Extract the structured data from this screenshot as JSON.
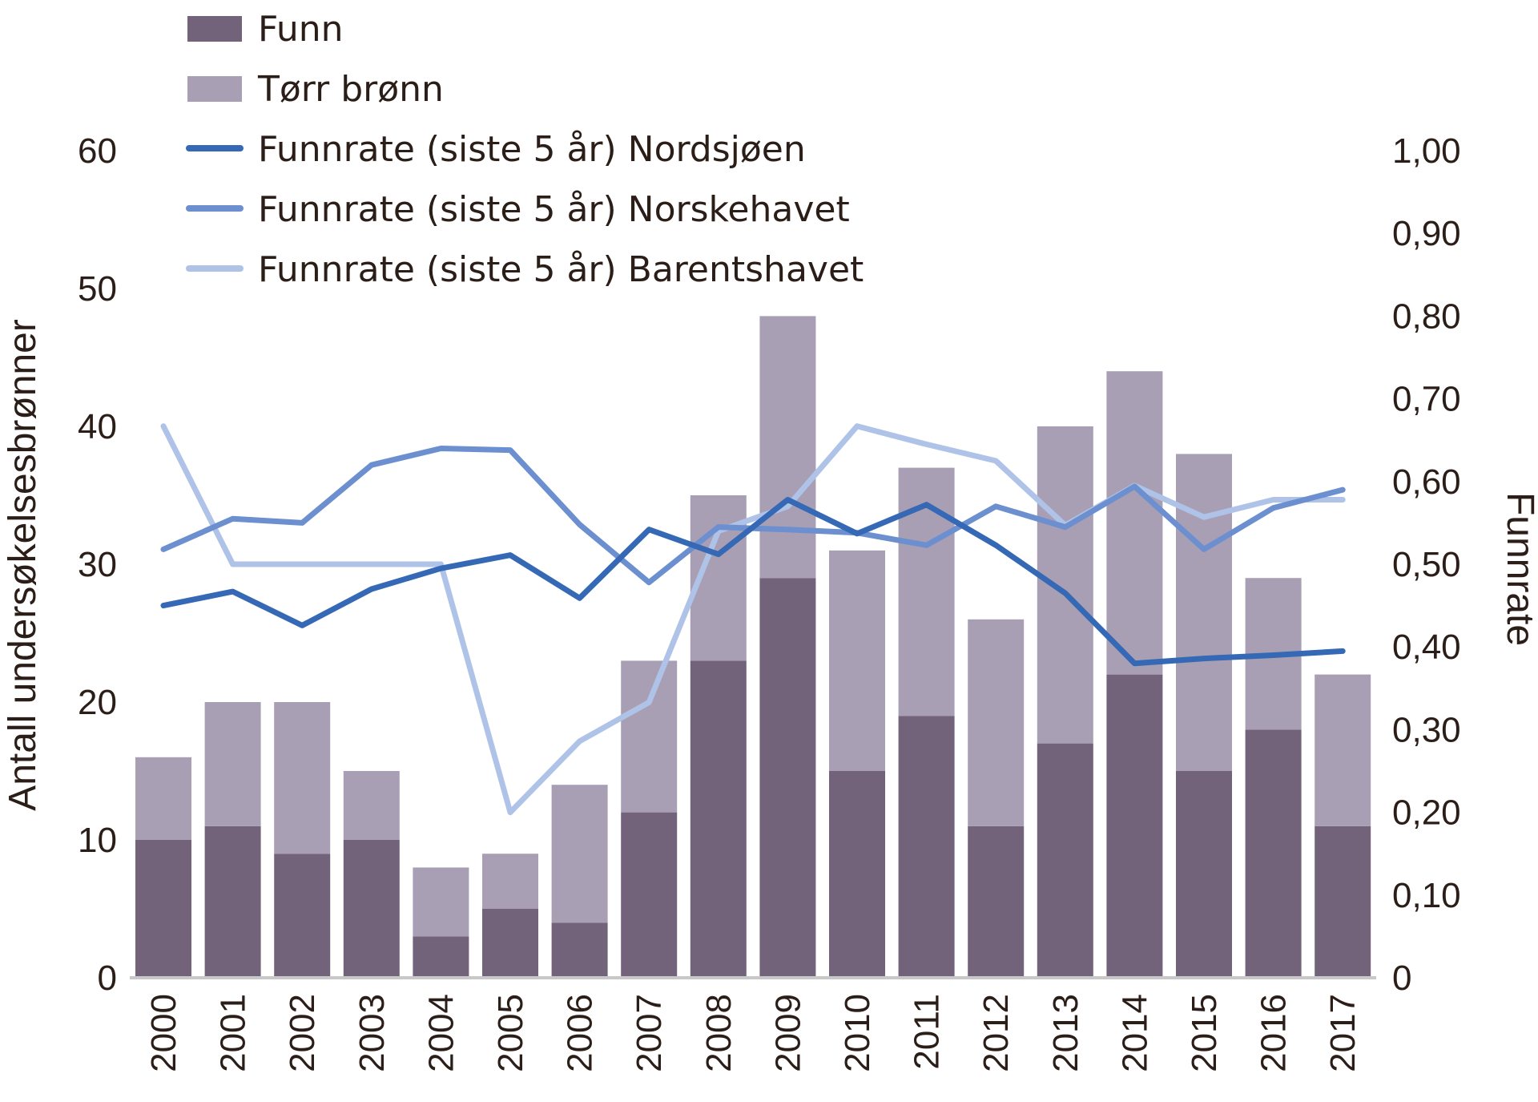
{
  "chart_data": {
    "type": "bar",
    "stacked": true,
    "categories": [
      "2000",
      "2001",
      "2002",
      "2003",
      "2004",
      "2005",
      "2006",
      "2007",
      "2008",
      "2009",
      "2010",
      "2011",
      "2012",
      "2013",
      "2014",
      "2015",
      "2016",
      "2017"
    ],
    "bar_series": [
      {
        "name": "Funn",
        "color": "#73637a",
        "values": [
          10,
          11,
          9,
          10,
          3,
          5,
          4,
          12,
          23,
          29,
          15,
          19,
          11,
          17,
          22,
          15,
          18,
          11
        ]
      },
      {
        "name": "Tørr brønn",
        "color": "#a89fb4",
        "values": [
          6,
          9,
          11,
          5,
          5,
          4,
          10,
          11,
          12,
          19,
          16,
          18,
          15,
          23,
          22,
          23,
          11,
          11
        ]
      }
    ],
    "line_series": [
      {
        "name": "Funnrate (siste 5 år) Nordsjøen",
        "color": "#3569b5",
        "axis": "right",
        "values": [
          0.45,
          0.467,
          0.426,
          0.47,
          0.495,
          0.511,
          0.459,
          0.542,
          0.512,
          0.578,
          0.537,
          0.572,
          0.523,
          0.465,
          0.38,
          0.386,
          0.39,
          0.395
        ]
      },
      {
        "name": "Funnrate (siste 5 år) Norskehavet",
        "color": "#6c8fd0",
        "axis": "right",
        "values": [
          0.518,
          0.555,
          0.55,
          0.62,
          0.64,
          0.638,
          0.548,
          0.478,
          0.545,
          0.542,
          0.538,
          0.523,
          0.57,
          0.545,
          0.594,
          0.518,
          0.568,
          0.59
        ]
      },
      {
        "name": "Funnrate (siste 5 år) Barentshavet",
        "color": "#afc2e7",
        "axis": "right",
        "values": [
          0.667,
          0.5,
          0.5,
          0.5,
          0.5,
          0.2,
          0.286,
          0.333,
          0.54,
          0.57,
          0.667,
          0.645,
          0.625,
          0.547,
          0.595,
          0.557,
          0.578,
          0.578
        ]
      }
    ],
    "y_left": {
      "label": "Antall undersøkelsesbrønner",
      "ylim": [
        0,
        60
      ],
      "ticks": [
        "0",
        "10",
        "20",
        "30",
        "40",
        "50",
        "60"
      ]
    },
    "y_right": {
      "label": "Funnrate",
      "ylim": [
        0,
        1.0
      ],
      "ticks": [
        "0",
        "0,10",
        "0,20",
        "0,30",
        "0,40",
        "0,50",
        "0,60",
        "0,70",
        "0,80",
        "0,90",
        "1,00"
      ]
    },
    "legend_position": "top-left",
    "grid": false
  }
}
